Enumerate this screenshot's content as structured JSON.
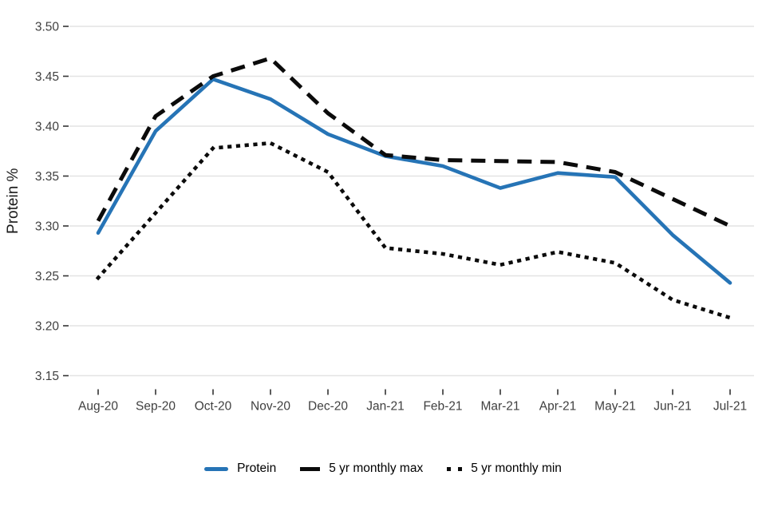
{
  "chart_data": {
    "type": "line",
    "title": "",
    "xlabel": "",
    "ylabel": "Protein %",
    "categories": [
      "Aug-20",
      "Sep-20",
      "Oct-20",
      "Nov-20",
      "Dec-20",
      "Jan-21",
      "Feb-21",
      "Mar-21",
      "Apr-21",
      "May-21",
      "Jun-21",
      "Jul-21"
    ],
    "series": [
      {
        "name": "Protein",
        "style": "solid",
        "color": "#2674b6",
        "values": [
          3.293,
          3.395,
          3.447,
          3.427,
          3.392,
          3.37,
          3.36,
          3.338,
          3.353,
          3.349,
          3.291,
          3.243
        ]
      },
      {
        "name": "5 yr monthly max",
        "style": "dashed",
        "color": "#0b0b0b",
        "values": [
          3.305,
          3.41,
          3.45,
          3.468,
          3.413,
          3.371,
          3.366,
          3.365,
          3.364,
          3.354,
          3.327,
          3.3
        ]
      },
      {
        "name": "5 yr monthly min",
        "style": "dotted",
        "color": "#0b0b0b",
        "values": [
          3.248,
          3.313,
          3.378,
          3.383,
          3.354,
          3.278,
          3.272,
          3.261,
          3.274,
          3.263,
          3.226,
          3.208
        ]
      }
    ],
    "ylim": [
      3.15,
      3.5
    ],
    "yticks": [
      "3.15",
      "3.20",
      "3.25",
      "3.30",
      "3.35",
      "3.40",
      "3.45",
      "3.50"
    ],
    "grid": "horizontal-only",
    "legend_position": "bottom-center"
  },
  "legend": {
    "items": [
      {
        "label": "Protein"
      },
      {
        "label": "5 yr monthly max"
      },
      {
        "label": "5 yr monthly min"
      }
    ]
  },
  "colors": {
    "protein_blue": "#2674b6",
    "line_black": "#0b0b0b",
    "gridline": "#e3e3e3",
    "tick_text": "#404040",
    "axis_title_text": "#1a1a1a"
  }
}
